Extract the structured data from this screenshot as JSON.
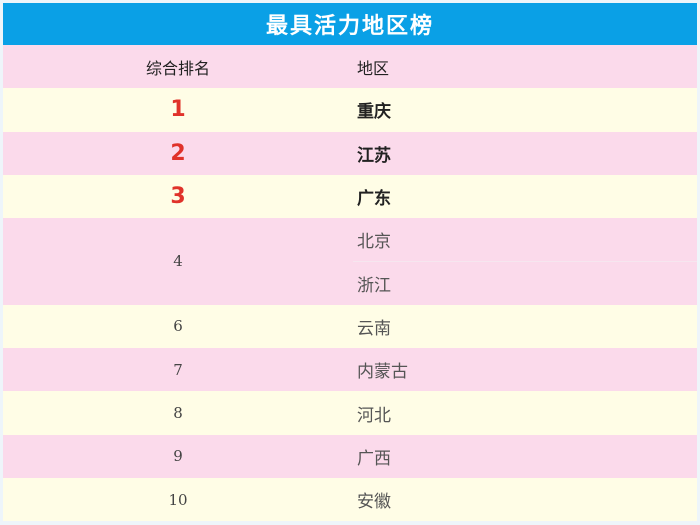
{
  "title": "最具活力地区榜",
  "columns": [
    "综合排名",
    "地区"
  ],
  "rows": [
    {
      "rank": "1",
      "regions": [
        "重庆"
      ]
    },
    {
      "rank": "2",
      "regions": [
        "江苏"
      ]
    },
    {
      "rank": "3",
      "regions": [
        "广东"
      ]
    },
    {
      "rank": "4",
      "regions": [
        "北京",
        "浙江"
      ]
    },
    {
      "rank": "6",
      "regions": [
        "云南"
      ]
    },
    {
      "rank": "7",
      "regions": [
        "内蒙古"
      ]
    },
    {
      "rank": "8",
      "regions": [
        "河北"
      ]
    },
    {
      "rank": "9",
      "regions": [
        "广西"
      ]
    },
    {
      "rank": "10",
      "regions": [
        "安徽"
      ]
    }
  ],
  "colors": {
    "header": "#0aa0e6",
    "row_pink": "#fbdaeb",
    "row_cream": "#fffde6",
    "top_rank": "#e0322a"
  }
}
